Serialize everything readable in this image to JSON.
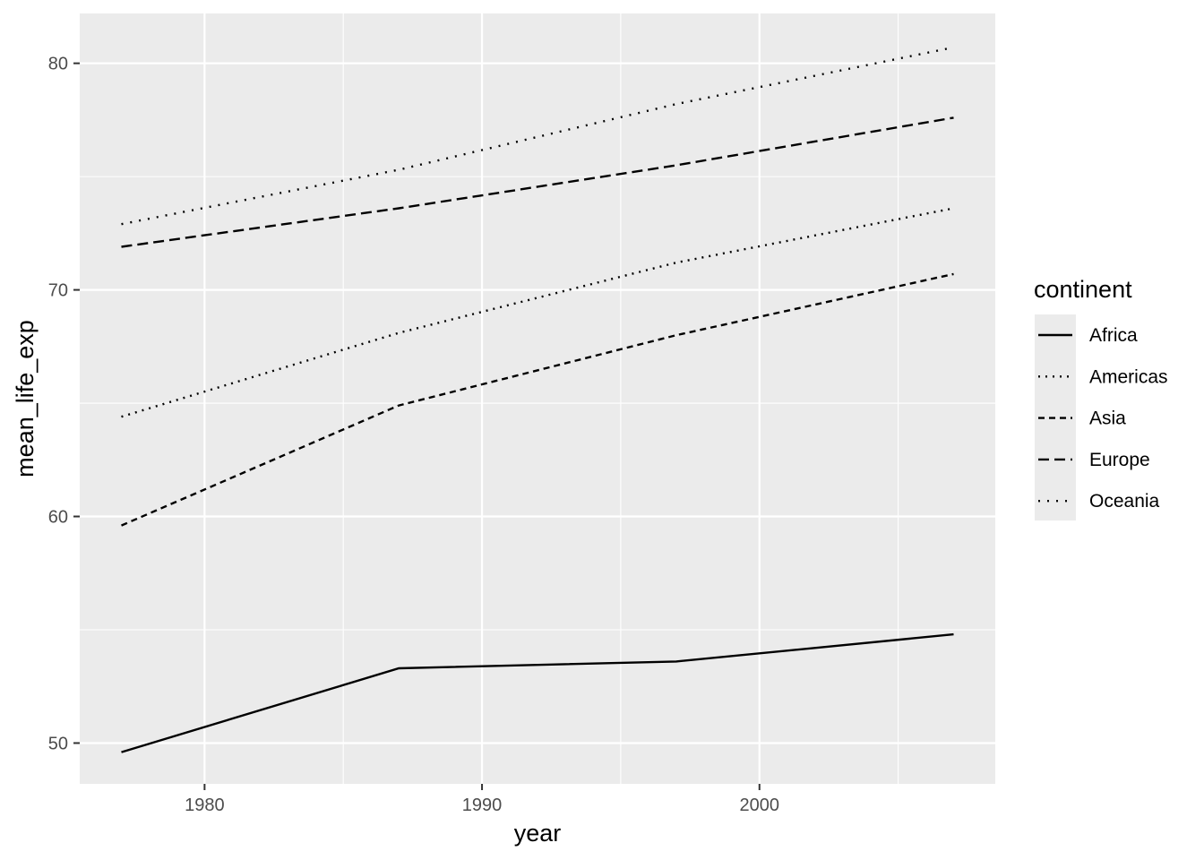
{
  "chart_data": {
    "type": "line",
    "xlabel": "year",
    "ylabel": "mean_life_exp",
    "xlim": [
      1975.5,
      2008.5
    ],
    "ylim": [
      48.2,
      82.2
    ],
    "x_ticks": [
      1980,
      1990,
      2000
    ],
    "x_minor": [
      1985,
      1995,
      2005
    ],
    "y_ticks": [
      50,
      60,
      70,
      80
    ],
    "y_minor": [
      55,
      65,
      75
    ],
    "grid": true,
    "panel_background": "#ebebeb",
    "grid_color": "#ffffff",
    "line_color": "#000000",
    "legend": {
      "title": "continent",
      "position": "right"
    },
    "x": [
      1977,
      1987,
      1997,
      2007
    ],
    "series": [
      {
        "name": "Africa",
        "linetype": "solid",
        "values": [
          49.6,
          53.3,
          53.6,
          54.8
        ]
      },
      {
        "name": "Americas",
        "linetype": "dotted",
        "values": [
          64.4,
          68.1,
          71.2,
          73.6
        ]
      },
      {
        "name": "Asia",
        "linetype": "dashed",
        "values": [
          59.6,
          64.9,
          68.0,
          70.7
        ]
      },
      {
        "name": "Europe",
        "linetype": "longdash",
        "values": [
          71.9,
          73.6,
          75.5,
          77.6
        ]
      },
      {
        "name": "Oceania",
        "linetype": "dotdot",
        "values": [
          72.9,
          75.3,
          78.2,
          80.7
        ]
      }
    ]
  }
}
